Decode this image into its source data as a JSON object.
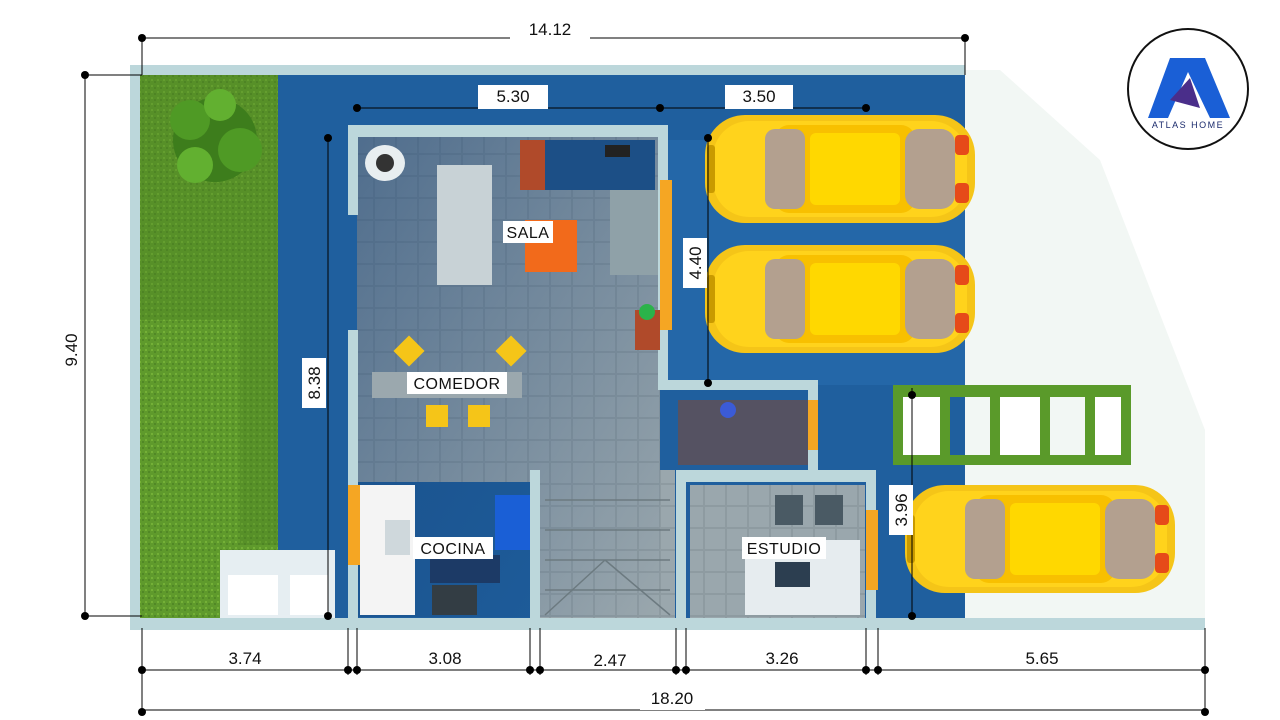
{
  "dimensions": {
    "top_total": "14.12",
    "top_sala": "5.30",
    "top_garage": "3.50",
    "left_height": "9.40",
    "interior_height": "8.38",
    "garage_depth": "4.40",
    "estudio_side": "3.96",
    "bottom_1": "3.74",
    "bottom_2": "3.08",
    "bottom_3": "2.47",
    "bottom_4": "3.26",
    "bottom_5": "5.65",
    "bottom_total": "18.20"
  },
  "rooms": {
    "sala": "SALA",
    "comedor": "COMEDOR",
    "cocina": "COCINA",
    "estudio": "ESTUDIO"
  },
  "logo": {
    "brand": "ATLAS HOME",
    "icon": "atlas-home-logo-icon"
  },
  "colors": {
    "floor_blue": "#1f5f9e",
    "wall": "#b8d4d8",
    "lawn": "#5a8f2a",
    "tile": "#8c9aa0",
    "car_yellow": "#f5c518",
    "sofa_orange": "#f26a1b",
    "accent_blue": "#1a5fd6"
  }
}
